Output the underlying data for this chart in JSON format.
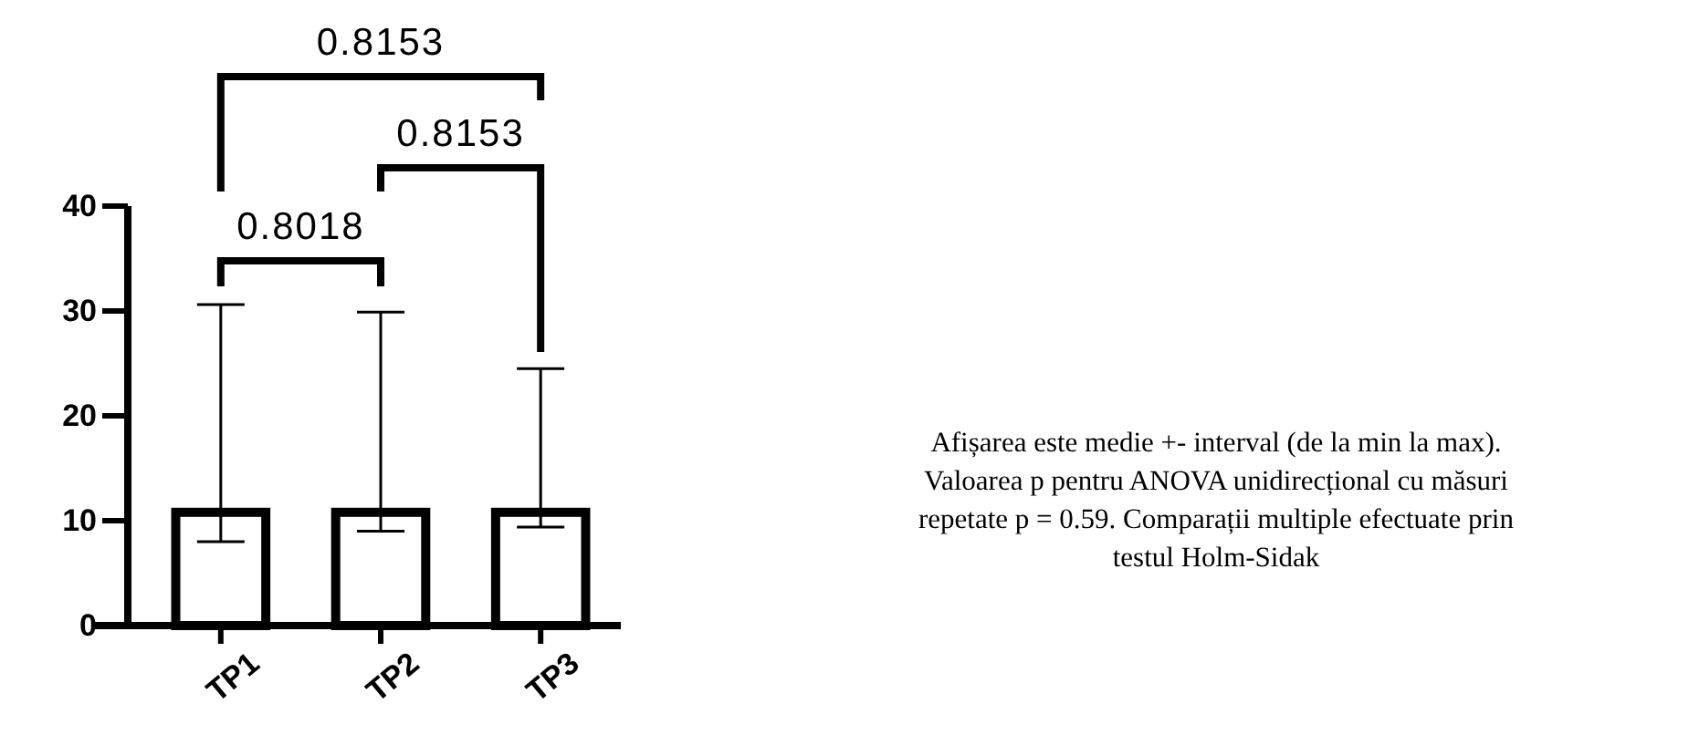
{
  "chart_data": {
    "type": "bar",
    "categories": [
      "TP1",
      "TP2",
      "TP3"
    ],
    "values": [
      10.8,
      10.8,
      10.8
    ],
    "errors": [
      [
        8.0,
        30.6
      ],
      [
        9.0,
        29.9
      ],
      [
        9.4,
        24.5
      ]
    ],
    "color": "#ffffff",
    "ylim": [
      0,
      40
    ],
    "yticks": [
      0,
      10,
      20,
      30,
      40
    ],
    "annotations": [
      "0.8153",
      "0.8153",
      "0.8018",
      "Afișarea este medie +- interval (de la min la max). Valoarea p pentru ANOVA unidirecțional cu măsuri repetate p = 0.59. Comparații multiple efectuate prin testul Holm-Sidak"
    ]
  }
}
